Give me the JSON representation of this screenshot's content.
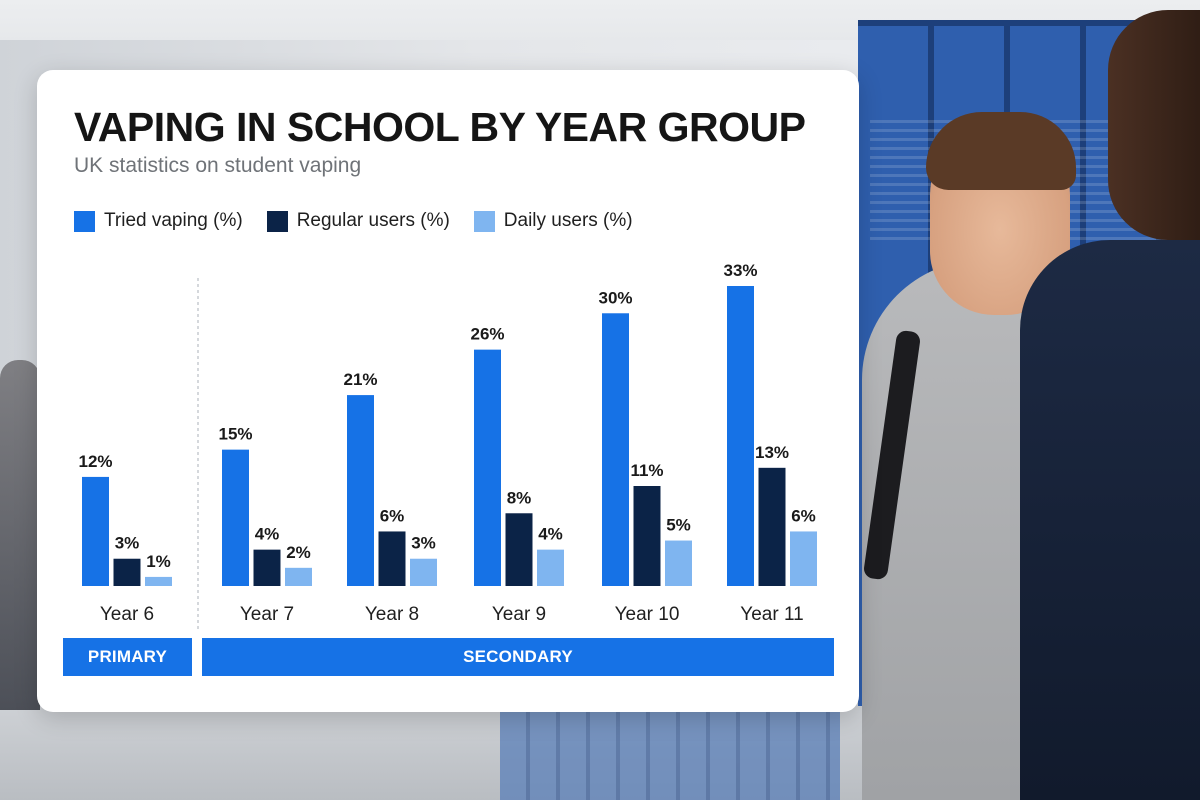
{
  "chart_data": {
    "type": "bar",
    "title": "VAPING IN SCHOOL BY YEAR GROUP",
    "subtitle": "UK statistics on student vaping",
    "categories": [
      "Year 6",
      "Year 7",
      "Year 8",
      "Year 9",
      "Year 10",
      "Year 11"
    ],
    "series": [
      {
        "name": "Tried vaping (%)",
        "color": "#1672e6",
        "values": [
          12,
          15,
          21,
          26,
          30,
          33
        ]
      },
      {
        "name": "Regular users (%)",
        "color": "#0b2347",
        "values": [
          3,
          4,
          6,
          8,
          11,
          13
        ]
      },
      {
        "name": "Daily users (%)",
        "color": "#7fb5f0",
        "values": [
          1,
          2,
          3,
          4,
          5,
          6
        ]
      }
    ],
    "value_suffix": "%",
    "ylim": [
      0,
      33
    ],
    "grid": false,
    "legend_position": "top-left",
    "groups": [
      {
        "label": "PRIMARY",
        "categories": [
          "Year 6"
        ]
      },
      {
        "label": "SECONDARY",
        "categories": [
          "Year 7",
          "Year 8",
          "Year 9",
          "Year 10",
          "Year 11"
        ]
      }
    ],
    "group_band_color": "#1672e6"
  }
}
